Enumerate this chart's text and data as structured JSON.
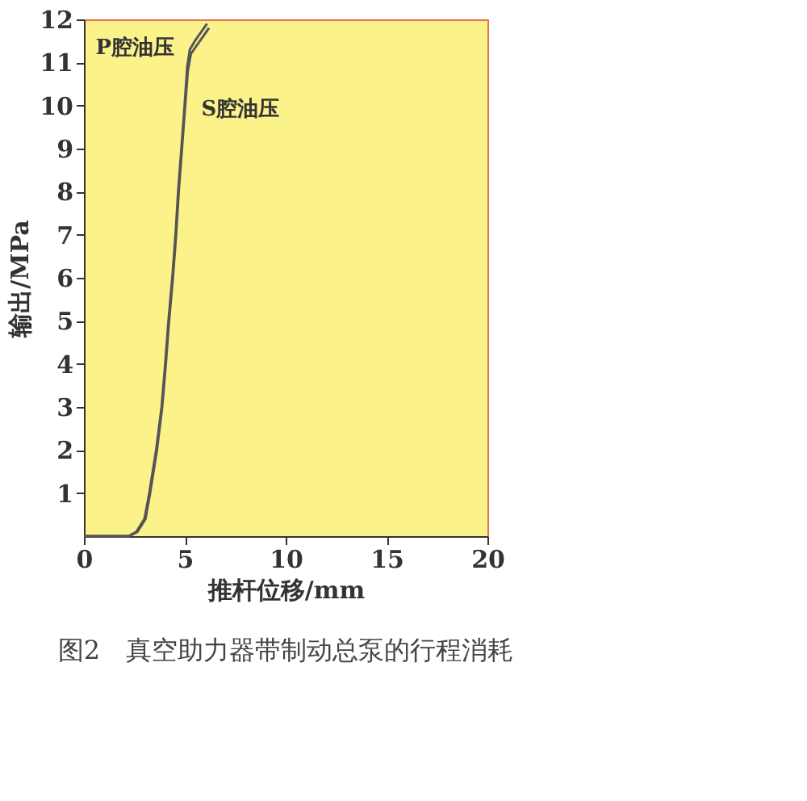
{
  "chart_data": {
    "type": "line",
    "xlabel": "推杆位移/mm",
    "ylabel": "输出/MPa",
    "xlim": [
      0,
      20
    ],
    "xticks": [
      0,
      5,
      10,
      15,
      20
    ],
    "ylim": [
      0,
      12
    ],
    "yticks": [
      1,
      2,
      3,
      4,
      5,
      6,
      7,
      8,
      9,
      10,
      11,
      12
    ],
    "grid": false,
    "legend": false,
    "marker": "none",
    "line_style": "solid",
    "series": [
      {
        "name": "P腔油压",
        "color": "#555555",
        "x": [
          0,
          2.2,
          2.6,
          3.0,
          3.24,
          3.58,
          3.85,
          4.03,
          4.19,
          4.38,
          4.54,
          4.67,
          4.83,
          4.99,
          5.12,
          5.25,
          5.5,
          5.8,
          6.1
        ],
        "values": [
          0,
          0,
          0.1,
          0.4,
          1,
          2,
          3,
          4,
          5,
          6,
          7,
          8,
          9,
          10,
          10.9,
          11.3,
          11.5,
          11.7,
          11.9
        ]
      },
      {
        "name": "S腔油压",
        "color": "#555555",
        "x": [
          0,
          2.25,
          2.65,
          3.05,
          3.28,
          3.62,
          3.88,
          4.06,
          4.22,
          4.41,
          4.57,
          4.7,
          4.86,
          5.02,
          5.15,
          5.3,
          5.6,
          5.9,
          6.2
        ],
        "values": [
          0,
          0,
          0.1,
          0.4,
          1,
          2,
          3,
          4,
          5,
          6,
          7,
          8,
          9,
          10,
          10.8,
          11.2,
          11.4,
          11.6,
          11.8
        ]
      }
    ],
    "annotations": [
      "图2　真空助力器带制动总泵的行程消耗"
    ]
  }
}
